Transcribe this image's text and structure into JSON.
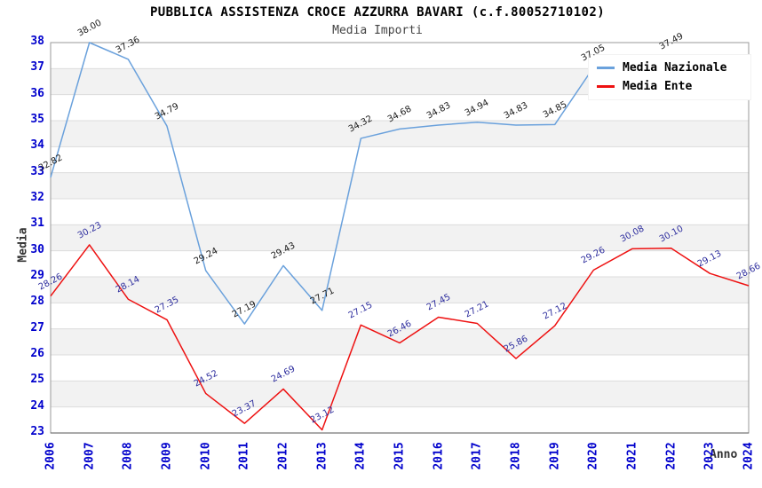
{
  "title": "PUBBLICA ASSISTENZA CROCE AZZURRA BAVARI (c.f.80052710102)",
  "subtitle": "Media Importi",
  "legend": [
    {
      "label": "Media Nazionale",
      "color": "#6aa1dc"
    },
    {
      "label": "Media Ente",
      "color": "#ee1111"
    }
  ],
  "colors": {
    "title": "#000000",
    "subtitle": "#444444",
    "axis_tick": "#0000cc",
    "axis_title": "#333333",
    "band": "#f2f2f2",
    "gridline": "#dcdcdc",
    "border": "#999999",
    "axis_line": "#555555"
  },
  "chart_data": {
    "type": "line",
    "x": [
      "2006",
      "2007",
      "2008",
      "2009",
      "2010",
      "2011",
      "2012",
      "2013",
      "2014",
      "2015",
      "2016",
      "2017",
      "2018",
      "2019",
      "2020",
      "2021",
      "2022",
      "2023",
      "2024"
    ],
    "xlabel": "Anno",
    "ylabel": "Media",
    "ylim": [
      23,
      38
    ],
    "yticks": [
      23,
      24,
      25,
      26,
      27,
      28,
      29,
      30,
      31,
      32,
      33,
      34,
      35,
      36,
      37,
      38
    ],
    "grid": "horizontal-with-alternating-bands",
    "legend_position": "top-right-inside",
    "series": [
      {
        "name": "Media Nazionale",
        "color": "#6aa1dc",
        "label_color": "#1a1a1a",
        "values": [
          32.82,
          38.0,
          37.36,
          34.79,
          29.24,
          27.19,
          29.43,
          27.71,
          34.32,
          34.68,
          34.83,
          34.94,
          34.83,
          34.85,
          37.05,
          null,
          37.49,
          null,
          null
        ]
      },
      {
        "name": "Media Ente",
        "color": "#ee1111",
        "label_color": "#2e2e9e",
        "values": [
          28.26,
          30.23,
          28.14,
          27.35,
          24.52,
          23.37,
          24.69,
          23.12,
          27.15,
          26.46,
          27.45,
          27.21,
          25.86,
          27.12,
          29.26,
          30.08,
          30.1,
          29.13,
          28.66
        ]
      }
    ]
  }
}
